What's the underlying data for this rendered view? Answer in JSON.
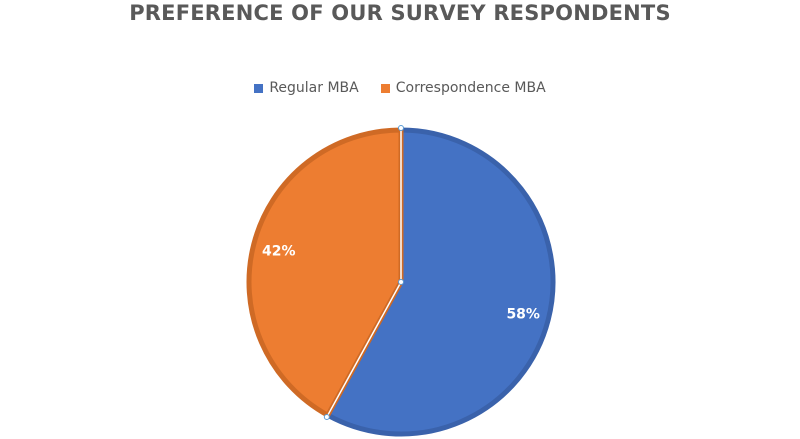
{
  "chart_data": {
    "type": "pie",
    "title": "PREFERENCE OF OUR SURVEY RESPONDENTS",
    "legend_position": "top",
    "slices": [
      {
        "name": "Regular MBA",
        "value": 58,
        "label": "58%",
        "color": "#4472c4",
        "border": "#3a62ab"
      },
      {
        "name": "Correspondence MBA",
        "value": 42,
        "label": "42%",
        "color": "#ed7d31",
        "border": "#cf6a25"
      }
    ]
  }
}
